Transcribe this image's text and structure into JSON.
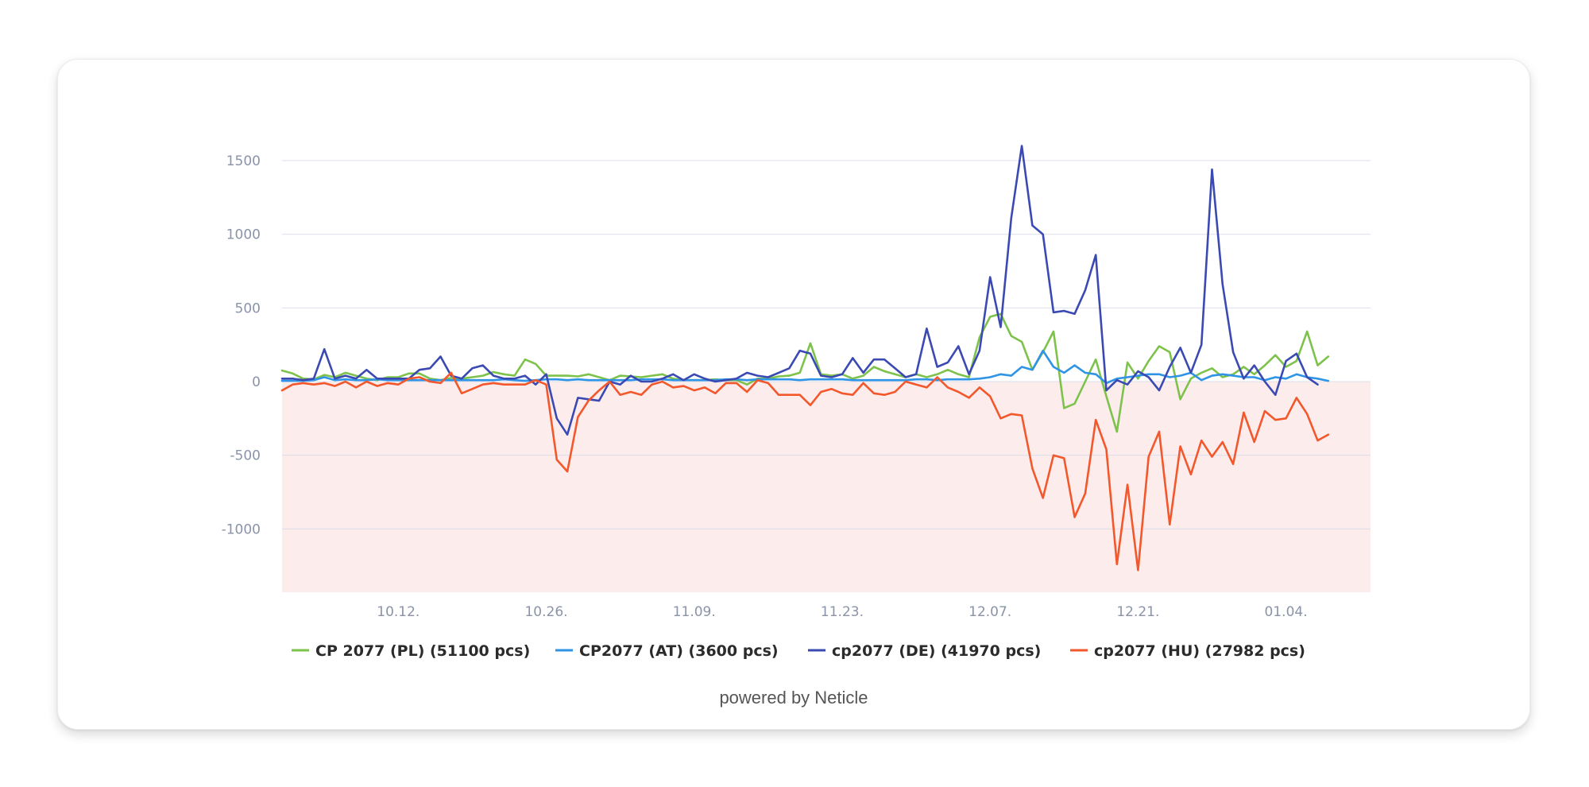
{
  "credit": "powered by Neticle",
  "colors": {
    "negative_band": "#fdecec",
    "grid": "#dcdfea",
    "axis_text": "#8a93a8"
  },
  "chart_data": {
    "type": "line",
    "title": "",
    "xlabel": "",
    "ylabel": "",
    "ylim": [
      -1430,
      1700
    ],
    "yticks": [
      1500,
      1000,
      500,
      0,
      -500,
      -1000
    ],
    "ytick_labels": [
      "1500",
      "1000",
      "500",
      "0",
      "-500",
      "-1000"
    ],
    "xlim": [
      0,
      103
    ],
    "xticks": [
      11,
      25,
      39,
      53,
      67,
      81,
      95
    ],
    "xtick_labels": [
      "10.12.",
      "10.26.",
      "11.09.",
      "11.23.",
      "12.07.",
      "12.21.",
      "01.04."
    ],
    "negative_shading": true,
    "grid": true,
    "legend_position": "bottom",
    "series": [
      {
        "name": "CP 2077 (PL) (51100 pcs)",
        "color": "#7dc24b",
        "values": [
          75,
          55,
          20,
          15,
          45,
          30,
          60,
          40,
          20,
          10,
          30,
          30,
          55,
          55,
          20,
          10,
          25,
          20,
          30,
          40,
          65,
          50,
          40,
          150,
          120,
          40,
          40,
          40,
          35,
          50,
          30,
          10,
          40,
          35,
          30,
          40,
          50,
          20,
          10,
          10,
          10,
          15,
          10,
          10,
          -20,
          20,
          20,
          35,
          40,
          60,
          260,
          50,
          40,
          50,
          20,
          40,
          100,
          70,
          50,
          30,
          50,
          30,
          50,
          80,
          50,
          30,
          300,
          440,
          460,
          310,
          270,
          80,
          200,
          340,
          -180,
          -150,
          0,
          150,
          -100,
          -340,
          130,
          20,
          140,
          240,
          200,
          -120,
          20,
          60,
          90,
          30,
          50,
          100,
          50,
          110,
          180,
          100,
          140,
          340,
          110,
          170
        ]
      },
      {
        "name": "CP2077 (AT) (3600 pcs)",
        "color": "#2f93e6",
        "values": [
          5,
          5,
          5,
          10,
          30,
          10,
          15,
          10,
          10,
          15,
          10,
          10,
          10,
          10,
          10,
          10,
          10,
          10,
          10,
          10,
          10,
          15,
          10,
          5,
          10,
          15,
          15,
          10,
          15,
          10,
          10,
          10,
          10,
          10,
          15,
          15,
          15,
          10,
          10,
          10,
          10,
          10,
          15,
          15,
          10,
          15,
          15,
          15,
          15,
          10,
          15,
          15,
          15,
          15,
          10,
          10,
          10,
          10,
          10,
          10,
          15,
          15,
          10,
          15,
          15,
          15,
          20,
          30,
          50,
          40,
          100,
          80,
          210,
          100,
          60,
          110,
          60,
          50,
          -10,
          20,
          30,
          40,
          50,
          50,
          30,
          40,
          60,
          10,
          40,
          50,
          40,
          30,
          30,
          10,
          30,
          20,
          50,
          30,
          20,
          5
        ]
      },
      {
        "name": "cp2077 (DE) (41970 pcs)",
        "color": "#3a4ab2",
        "values": [
          20,
          20,
          10,
          20,
          220,
          20,
          40,
          20,
          80,
          20,
          20,
          20,
          20,
          80,
          90,
          170,
          40,
          20,
          90,
          110,
          40,
          20,
          20,
          40,
          -20,
          50,
          -250,
          -360,
          -110,
          -120,
          -130,
          0,
          -20,
          40,
          0,
          0,
          20,
          50,
          10,
          50,
          20,
          0,
          10,
          20,
          60,
          40,
          30,
          60,
          90,
          210,
          190,
          40,
          30,
          50,
          160,
          60,
          150,
          150,
          90,
          30,
          50,
          360,
          100,
          130,
          240,
          50,
          210,
          710,
          370,
          1110,
          1600,
          1060,
          1000,
          470,
          480,
          460,
          620,
          860,
          -60,
          10,
          -20,
          70,
          30,
          -60,
          100,
          230,
          60,
          250,
          1440,
          660,
          200,
          20,
          110,
          0,
          -90,
          140,
          190,
          30,
          -20
        ]
      },
      {
        "name": "cp2077 (HU) (27982 pcs)",
        "color": "#f2582c",
        "values": [
          -60,
          -20,
          -10,
          -20,
          -10,
          -30,
          0,
          -40,
          0,
          -30,
          -10,
          -20,
          20,
          30,
          0,
          -10,
          60,
          -80,
          -50,
          -20,
          -10,
          -20,
          -20,
          -20,
          10,
          -20,
          -530,
          -610,
          -240,
          -130,
          -60,
          0,
          -90,
          -70,
          -90,
          -20,
          0,
          -40,
          -30,
          -60,
          -40,
          -80,
          -10,
          -10,
          -70,
          10,
          -10,
          -90,
          -90,
          -90,
          -160,
          -70,
          -50,
          -80,
          -90,
          -10,
          -80,
          -90,
          -70,
          0,
          -20,
          -40,
          30,
          -40,
          -70,
          -110,
          -40,
          -100,
          -250,
          -220,
          -230,
          -590,
          -790,
          -500,
          -520,
          -920,
          -760,
          -260,
          -460,
          -1240,
          -700,
          -1280,
          -510,
          -340,
          -970,
          -440,
          -630,
          -400,
          -510,
          -410,
          -560,
          -210,
          -410,
          -200,
          -260,
          -250,
          -110,
          -220,
          -400,
          -360
        ]
      }
    ]
  }
}
